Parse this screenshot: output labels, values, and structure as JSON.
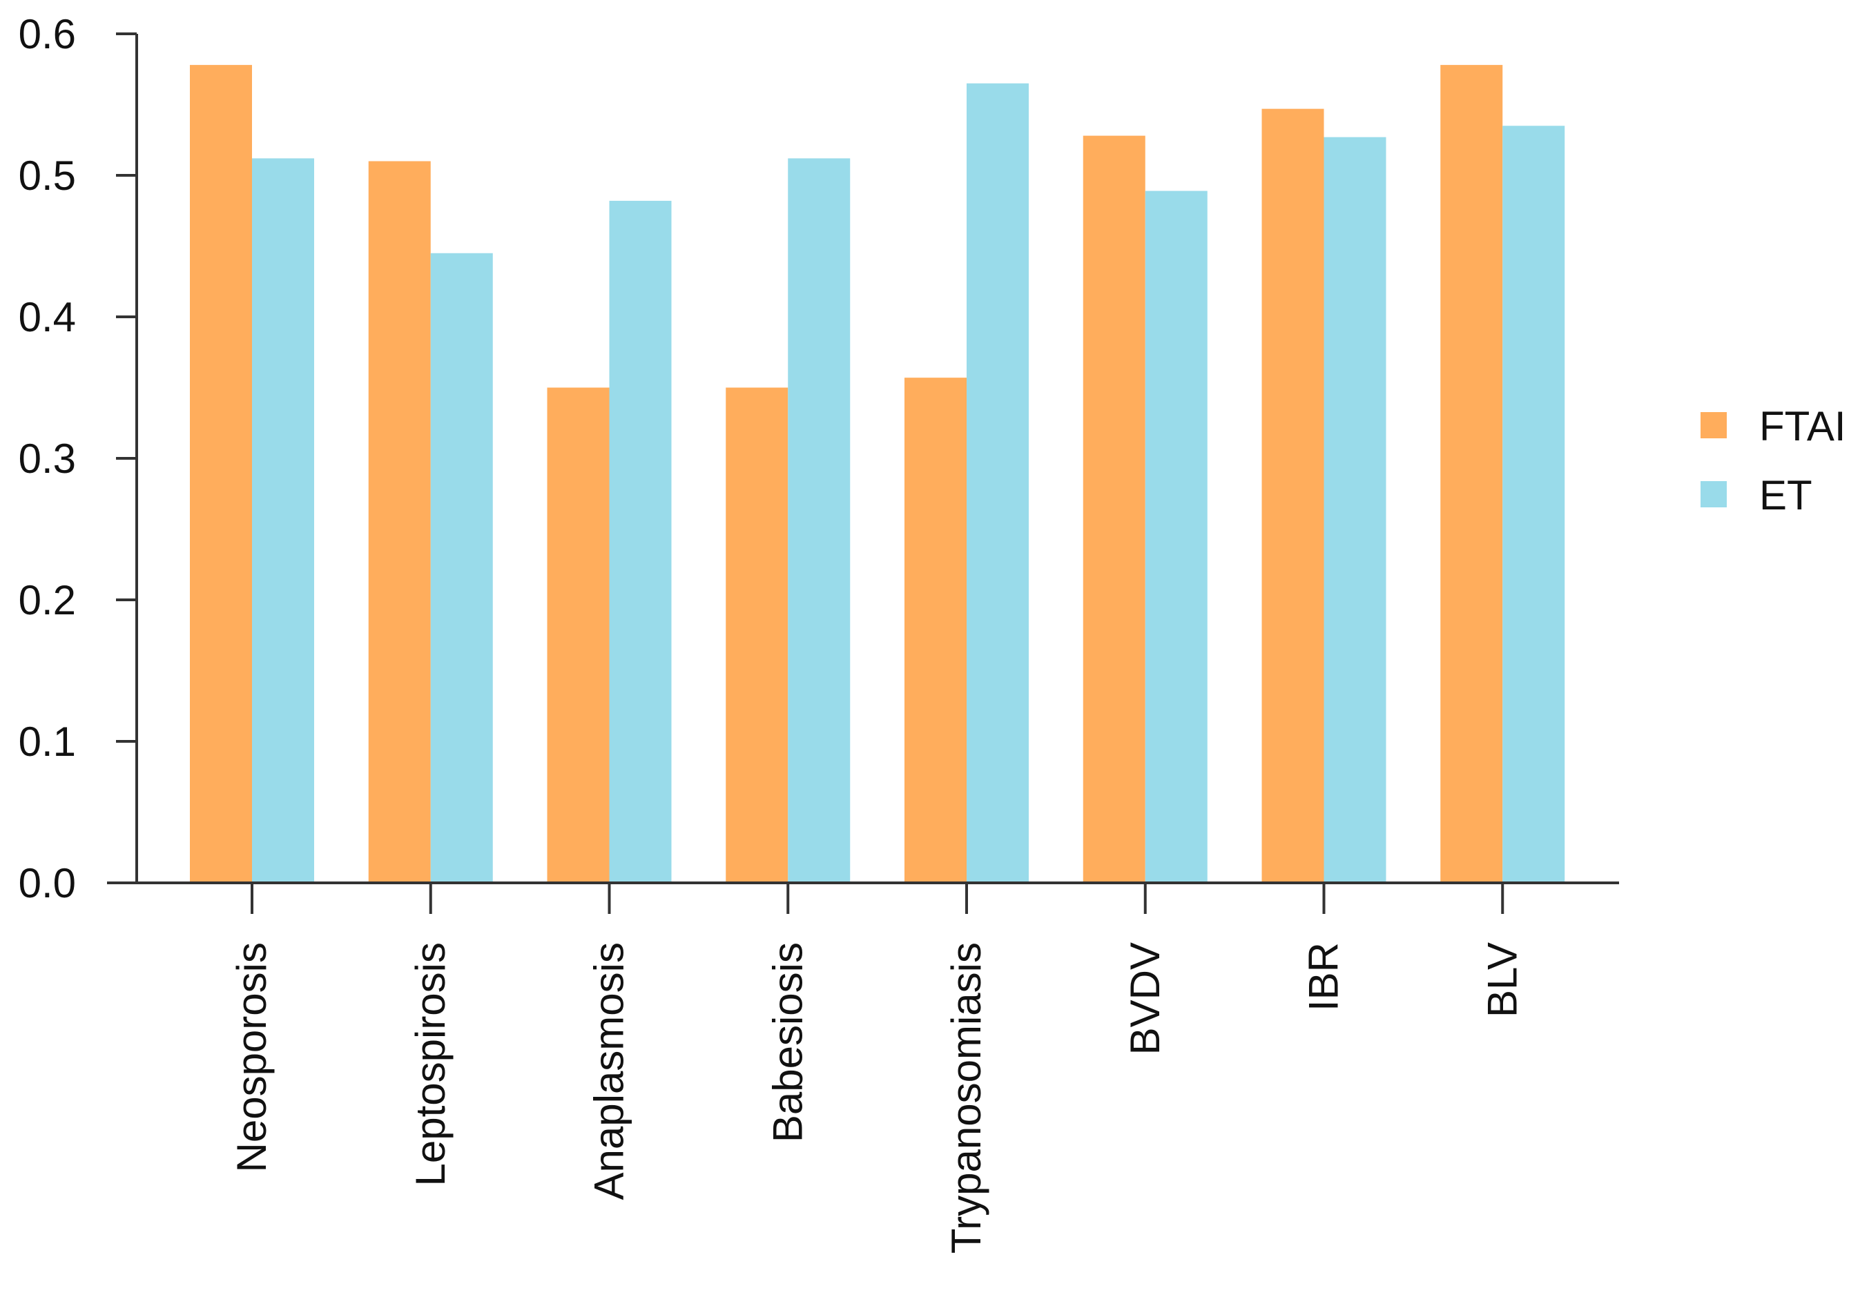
{
  "chart_data": {
    "type": "bar",
    "title": "",
    "xlabel": "",
    "ylabel": "",
    "categories": [
      "Neosporosis",
      "Leptospirosis",
      "Anaplasmosis",
      "Babesiosis",
      "Trypanosomiasis",
      "BVDV",
      "IBR",
      "BLV"
    ],
    "series": [
      {
        "name": "FTAI",
        "color": "#FFAD5C",
        "values": [
          0.578,
          0.51,
          0.35,
          0.35,
          0.357,
          0.528,
          0.547,
          0.578
        ]
      },
      {
        "name": "ET",
        "color": "#99DBEA",
        "values": [
          0.512,
          0.445,
          0.482,
          0.512,
          0.565,
          0.489,
          0.527,
          0.535
        ]
      }
    ],
    "ylim": [
      0,
      0.6
    ],
    "yticks": [
      "0.0",
      "0.1",
      "0.2",
      "0.3",
      "0.4",
      "0.5",
      "0.6"
    ],
    "grid": false,
    "legend_position": "right"
  }
}
